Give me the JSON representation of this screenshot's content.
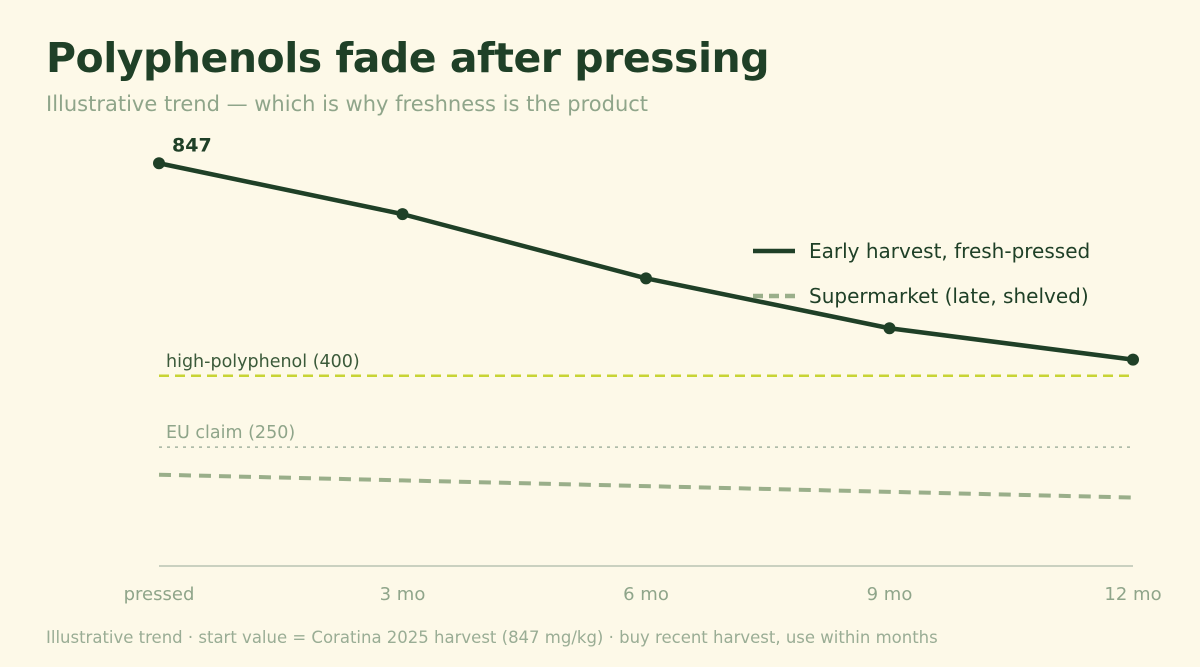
{
  "title": "Polyphenols fade after pressing",
  "subtitle": "Illustrative trend — which is why freshness is the product",
  "footer": "Illustrative trend · start value = Coratina 2025 harvest (847 mg/kg) · buy recent harvest, use within months",
  "chart_data": {
    "type": "line",
    "categories": [
      "pressed",
      "3 mo",
      "6 mo",
      "9 mo",
      "12 mo"
    ],
    "ylim": [
      0,
      900
    ],
    "grid": false,
    "legend": "top-right",
    "series": [
      {
        "name": "Early harvest, fresh-pressed",
        "values": [
          847,
          740,
          605,
          500,
          434
        ],
        "style": "solid",
        "color": "#1f4027",
        "markers": true,
        "labels": [
          "847",
          null,
          null,
          null,
          null
        ]
      },
      {
        "name": "Supermarket (late, shelved)",
        "values": [
          192,
          180,
          168,
          156,
          144
        ],
        "style": "dashed",
        "color": "#9aaf8a",
        "markers": false
      }
    ],
    "reference_lines": [
      {
        "label": "high-polyphenol (400)",
        "value": 400,
        "color": "#c8d435",
        "style": "dashed"
      },
      {
        "label": "EU claim (250)",
        "value": 250,
        "color": "#a4b3a0",
        "style": "dotted"
      }
    ]
  }
}
